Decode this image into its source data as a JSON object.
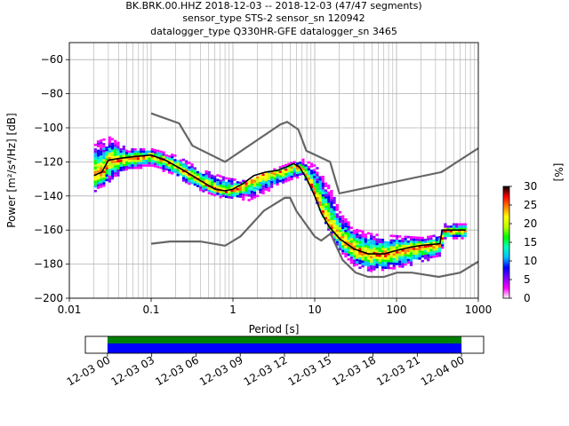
{
  "title": {
    "line1": "BK.BRK.00.HHZ   2018-12-03 -- 2018-12-03  (47/47 segments)",
    "line2": "sensor_type STS-2 sensor_sn 120942",
    "line3": "datalogger_type Q330HR-GFE datalogger_sn 3465"
  },
  "colors": {
    "noise_models": "#666666",
    "mode": "#000000",
    "coverage_top": "#008000",
    "coverage_bottom": "#0000ff",
    "grid": "#b0b0b0"
  },
  "chart_data": [
    {
      "type": "heatmap",
      "name": "ppsd",
      "xlabel": "Period [s]",
      "ylabel": "Power [m²/s⁴/Hz] [dB]",
      "x_scale": "log",
      "xlim": [
        0.01,
        1000
      ],
      "ylim": [
        -200,
        -50
      ],
      "grid": true,
      "x_ticks": [
        {
          "value": 0.01,
          "label": "0.01"
        },
        {
          "value": 0.1,
          "label": "0.1"
        },
        {
          "value": 1,
          "label": "1"
        },
        {
          "value": 10,
          "label": "10"
        },
        {
          "value": 100,
          "label": "100"
        },
        {
          "value": 1000,
          "label": "1000"
        }
      ],
      "y_ticks": [
        {
          "value": -60,
          "label": "−60"
        },
        {
          "value": -80,
          "label": "−80"
        },
        {
          "value": -100,
          "label": "−100"
        },
        {
          "value": -120,
          "label": "−120"
        },
        {
          "value": -140,
          "label": "−140"
        },
        {
          "value": -160,
          "label": "−160"
        },
        {
          "value": -180,
          "label": "−180"
        },
        {
          "value": -200,
          "label": "−200"
        }
      ],
      "noise_model_high": {
        "period": [
          0.1,
          0.22,
          0.32,
          0.8,
          3.8,
          4.6,
          6.3,
          7.9,
          15.4,
          20,
          354.8,
          1000
        ],
        "power": [
          -91.5,
          -97.4,
          -110.5,
          -120,
          -98,
          -96.5,
          -101,
          -113.5,
          -120,
          -138.5,
          -126,
          -112
        ]
      },
      "noise_model_low": {
        "period": [
          0.1,
          0.17,
          0.4,
          0.8,
          1.24,
          2.4,
          4.3,
          5.0,
          6.0,
          10,
          12,
          15.6,
          21.9,
          31.6,
          45,
          70,
          101,
          154,
          328,
          600,
          1000
        ],
        "power": [
          -168,
          -166.7,
          -166.7,
          -169.2,
          -163.7,
          -148.6,
          -141.1,
          -141.1,
          -149,
          -163.8,
          -166.2,
          -162.1,
          -177.5,
          -185,
          -187.5,
          -187.5,
          -185,
          -185,
          -187.5,
          -185,
          -178.5
        ]
      },
      "mode": {
        "period": [
          0.02,
          0.025,
          0.03,
          0.04,
          0.06,
          0.1,
          0.15,
          0.25,
          0.4,
          0.6,
          0.8,
          1.0,
          1.3,
          1.8,
          2.5,
          3.5,
          4.5,
          5.5,
          6.5,
          8,
          10,
          12,
          15,
          20,
          30,
          45,
          70,
          100,
          150,
          200,
          340,
          360,
          500,
          700
        ],
        "power": [
          -128,
          -126,
          -119,
          -118,
          -117,
          -116,
          -119,
          -125,
          -131,
          -136,
          -137,
          -136,
          -133,
          -128,
          -126,
          -125,
          -123,
          -121,
          -123,
          -130,
          -140,
          -150,
          -158,
          -165,
          -171,
          -174,
          -174,
          -172,
          -170,
          -169,
          -168,
          -160,
          -160,
          -160
        ]
      },
      "histogram_spread": {
        "period": [
          0.02,
          0.03,
          0.05,
          0.1,
          0.2,
          0.4,
          0.8,
          1.5,
          3,
          5,
          7,
          10,
          15,
          20,
          30,
          50,
          100,
          200,
          340,
          360,
          700
        ],
        "upper": [
          -108,
          -105,
          -112,
          -112,
          -116,
          -124,
          -129,
          -131,
          -124,
          -120,
          -118,
          -122,
          -135,
          -150,
          -159,
          -162,
          -163,
          -164,
          -162,
          -156,
          -156
        ],
        "lower": [
          -137,
          -131,
          -124,
          -122,
          -128,
          -137,
          -141,
          -142,
          -135,
          -130,
          -127,
          -143,
          -162,
          -172,
          -181,
          -184,
          -182,
          -178,
          -175,
          -165,
          -164
        ]
      }
    },
    {
      "type": "heatmap",
      "name": "colorbar",
      "label": "[%]",
      "range": [
        0,
        30
      ],
      "ticks": [
        {
          "value": 0,
          "label": "0"
        },
        {
          "value": 5,
          "label": "5"
        },
        {
          "value": 10,
          "label": "10"
        },
        {
          "value": 15,
          "label": "15"
        },
        {
          "value": 20,
          "label": "20"
        },
        {
          "value": 25,
          "label": "25"
        },
        {
          "value": 30,
          "label": "30"
        }
      ],
      "colormap": [
        "#ffffff",
        "#ff00ff",
        "#8000ff",
        "#0000ff",
        "#00c0ff",
        "#00ffc0",
        "#00ff00",
        "#c0ff00",
        "#ffff00",
        "#ff8000",
        "#ff0000",
        "#000000"
      ]
    },
    {
      "type": "bar",
      "name": "coverage",
      "x_range_hours": [
        -1.5,
        25.5
      ],
      "data_span_hours": [
        0,
        24
      ],
      "x_ticks": [
        {
          "value": 0,
          "label": "12-03 00"
        },
        {
          "value": 3,
          "label": "12-03 03"
        },
        {
          "value": 6,
          "label": "12-03 06"
        },
        {
          "value": 9,
          "label": "12-03 09"
        },
        {
          "value": 12,
          "label": "12-03 12"
        },
        {
          "value": 15,
          "label": "12-03 15"
        },
        {
          "value": 18,
          "label": "12-03 18"
        },
        {
          "value": 21,
          "label": "12-03 21"
        },
        {
          "value": 24,
          "label": "12-04 00"
        }
      ]
    }
  ]
}
